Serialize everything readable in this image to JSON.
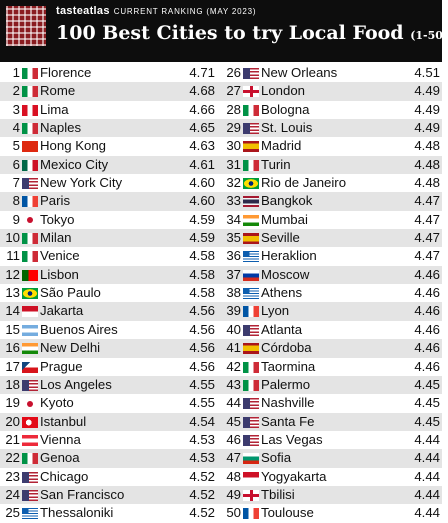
{
  "header": {
    "brand": "tasteatlas",
    "ranking_note": "CURRENT RANKING (MAY 2023)",
    "title": "100 Best Cities to try Local Food",
    "subtitle": "(1-50)"
  },
  "flags": {
    "it": "linear-gradient(90deg,#009246 0 33.3%,#ffffff 33.3% 66.6%,#ce2b37 66.6%)",
    "pe": "linear-gradient(90deg,#d91023 0 33.3%,#ffffff 33.3% 66.6%,#d91023 66.6%)",
    "hk": "#de2910",
    "mx": "linear-gradient(90deg,#006847 0 33.3%,#ffffff 33.3% 66.6%,#ce1126 66.6%)",
    "us": "linear-gradient(90deg,#3c3b6e 0 45%,transparent 45%),repeating-linear-gradient(180deg,#b22234 0 1.57px,#ffffff 1.57px 3.14px)",
    "fr": "linear-gradient(90deg,#0055a4 0 33.3%,#ffffff 33.3% 66.6%,#ef4135 66.6%)",
    "jp": "dot",
    "pt": "linear-gradient(90deg,#006600 0 40%,#ff0000 40%)",
    "br": "radial-gradient(circle at 50% 50%,#002776 0 2.2px,transparent 2.4px),radial-gradient(ellipse 45% 40% at 50% 50%,#fedf00 0 95%,transparent 100%),#009c3b",
    "id": "linear-gradient(180deg,#ce1126 0 50%,#ffffff 50%)",
    "ar": "linear-gradient(180deg,#74acdf 0 33.3%,#ffffff 33.3% 66.6%,#74acdf 66.6%)",
    "in": "linear-gradient(180deg,#ff9933 0 33.3%,#ffffff 33.3% 66.6%,#138808 66.6%)",
    "cz": "linear-gradient(135deg,#11457e 0 30%,transparent 30%),linear-gradient(180deg,#ffffff 0 50%,#d7141a 50%)",
    "tr": "radial-gradient(circle at 42% 50%,#ffffff 0 2.8px,transparent 3px),#e30a17",
    "at": "linear-gradient(180deg,#ed2939 0 33.3%,#ffffff 33.3% 66.6%,#ed2939 66.6%)",
    "gr": "linear-gradient(90deg,#0d5eaf 0 40%,transparent 40%) 0 0/100% 55% no-repeat,repeating-linear-gradient(180deg,#0d5eaf 0 1.22px,#ffffff 1.22px 2.44px)",
    "gb": "cross",
    "es": "linear-gradient(180deg,#aa151b 0 25%,#f1bf00 25% 75%,#aa151b 75%)",
    "th": "linear-gradient(180deg,#a51931 0 16.6%,#f4f5f8 16.6% 33.3%,#2d2a4a 33.3% 66.6%,#f4f5f8 66.6% 83.3%,#a51931 83.3%)",
    "ru": "linear-gradient(180deg,#ffffff 0 33.3%,#0039a6 33.3% 66.6%,#d52b1e 66.6%)",
    "bg": "linear-gradient(180deg,#ffffff 0 33.3%,#00966e 33.3% 66.6%,#d62612 66.6%)",
    "ge": "cross"
  },
  "left": [
    {
      "rank": "1",
      "flag": "it",
      "city": "Florence",
      "score": "4.71"
    },
    {
      "rank": "2",
      "flag": "it",
      "city": "Rome",
      "score": "4.68"
    },
    {
      "rank": "3",
      "flag": "pe",
      "city": "Lima",
      "score": "4.66"
    },
    {
      "rank": "4",
      "flag": "it",
      "city": "Naples",
      "score": "4.65"
    },
    {
      "rank": "5",
      "flag": "hk",
      "city": "Hong Kong",
      "score": "4.63"
    },
    {
      "rank": "6",
      "flag": "mx",
      "city": "Mexico City",
      "score": "4.61"
    },
    {
      "rank": "7",
      "flag": "us",
      "city": "New York City",
      "score": "4.60"
    },
    {
      "rank": "8",
      "flag": "fr",
      "city": "Paris",
      "score": "4.60"
    },
    {
      "rank": "9",
      "flag": "jp",
      "city": "Tokyo",
      "score": "4.59"
    },
    {
      "rank": "10",
      "flag": "it",
      "city": "Milan",
      "score": "4.59"
    },
    {
      "rank": "11",
      "flag": "it",
      "city": "Venice",
      "score": "4.58"
    },
    {
      "rank": "12",
      "flag": "pt",
      "city": "Lisbon",
      "score": "4.58"
    },
    {
      "rank": "13",
      "flag": "br",
      "city": "São Paulo",
      "score": "4.58"
    },
    {
      "rank": "14",
      "flag": "id",
      "city": "Jakarta",
      "score": "4.56"
    },
    {
      "rank": "15",
      "flag": "ar",
      "city": "Buenos Aires",
      "score": "4.56"
    },
    {
      "rank": "16",
      "flag": "in",
      "city": "New Delhi",
      "score": "4.56"
    },
    {
      "rank": "17",
      "flag": "cz",
      "city": "Prague",
      "score": "4.56"
    },
    {
      "rank": "18",
      "flag": "us",
      "city": "Los Angeles",
      "score": "4.55"
    },
    {
      "rank": "19",
      "flag": "jp",
      "city": "Kyoto",
      "score": "4.55"
    },
    {
      "rank": "20",
      "flag": "tr",
      "city": "Istanbul",
      "score": "4.54"
    },
    {
      "rank": "21",
      "flag": "at",
      "city": "Vienna",
      "score": "4.53"
    },
    {
      "rank": "22",
      "flag": "it",
      "city": "Genoa",
      "score": "4.53"
    },
    {
      "rank": "23",
      "flag": "us",
      "city": "Chicago",
      "score": "4.52"
    },
    {
      "rank": "24",
      "flag": "us",
      "city": "San Francisco",
      "score": "4.52"
    },
    {
      "rank": "25",
      "flag": "gr",
      "city": "Thessaloniki",
      "score": "4.52"
    }
  ],
  "right": [
    {
      "rank": "26",
      "flag": "us",
      "city": "New Orleans",
      "score": "4.51"
    },
    {
      "rank": "27",
      "flag": "gb",
      "city": "London",
      "score": "4.49"
    },
    {
      "rank": "28",
      "flag": "it",
      "city": "Bologna",
      "score": "4.49"
    },
    {
      "rank": "29",
      "flag": "us",
      "city": "St. Louis",
      "score": "4.49"
    },
    {
      "rank": "30",
      "flag": "es",
      "city": "Madrid",
      "score": "4.48"
    },
    {
      "rank": "31",
      "flag": "it",
      "city": "Turin",
      "score": "4.48"
    },
    {
      "rank": "32",
      "flag": "br",
      "city": "Rio de Janeiro",
      "score": "4.48"
    },
    {
      "rank": "33",
      "flag": "th",
      "city": "Bangkok",
      "score": "4.47"
    },
    {
      "rank": "34",
      "flag": "in",
      "city": "Mumbai",
      "score": "4.47"
    },
    {
      "rank": "35",
      "flag": "es",
      "city": "Seville",
      "score": "4.47"
    },
    {
      "rank": "36",
      "flag": "gr",
      "city": "Heraklion",
      "score": "4.47"
    },
    {
      "rank": "37",
      "flag": "ru",
      "city": "Moscow",
      "score": "4.46"
    },
    {
      "rank": "38",
      "flag": "gr",
      "city": "Athens",
      "score": "4.46"
    },
    {
      "rank": "39",
      "flag": "fr",
      "city": "Lyon",
      "score": "4.46"
    },
    {
      "rank": "40",
      "flag": "us",
      "city": "Atlanta",
      "score": "4.46"
    },
    {
      "rank": "41",
      "flag": "es",
      "city": "Córdoba",
      "score": "4.46"
    },
    {
      "rank": "42",
      "flag": "it",
      "city": "Taormina",
      "score": "4.46"
    },
    {
      "rank": "43",
      "flag": "it",
      "city": "Palermo",
      "score": "4.45"
    },
    {
      "rank": "44",
      "flag": "us",
      "city": "Nashville",
      "score": "4.45"
    },
    {
      "rank": "45",
      "flag": "us",
      "city": "Santa Fe",
      "score": "4.45"
    },
    {
      "rank": "46",
      "flag": "us",
      "city": "Las Vegas",
      "score": "4.44"
    },
    {
      "rank": "47",
      "flag": "bg",
      "city": "Sofia",
      "score": "4.44"
    },
    {
      "rank": "48",
      "flag": "id",
      "city": "Yogyakarta",
      "score": "4.44"
    },
    {
      "rank": "49",
      "flag": "ge",
      "city": "Tbilisi",
      "score": "4.44"
    },
    {
      "rank": "50",
      "flag": "fr",
      "city": "Toulouse",
      "score": "4.44"
    }
  ]
}
